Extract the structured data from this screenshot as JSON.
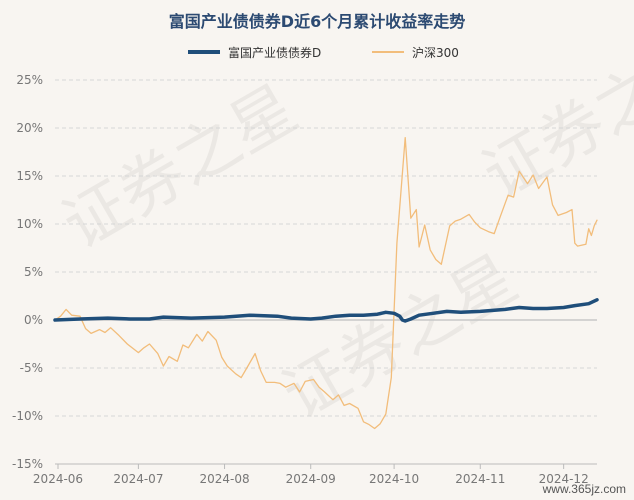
{
  "chart_data": {
    "type": "line",
    "title": "富国产业债债券D近6个月累计收益率走势",
    "xlabel": "",
    "ylabel": "",
    "y_ticks": [
      "25%",
      "20%",
      "15%",
      "10%",
      "5%",
      "0%",
      "-5%",
      "-10%",
      "-15%"
    ],
    "ylim": [
      -15,
      25
    ],
    "x_ticks": [
      "2024-06",
      "2024-07",
      "2024-08",
      "2024-09",
      "2024-10",
      "2024-11",
      "2024-12"
    ],
    "x_range": [
      "2024-06-01",
      "2024-12-13"
    ],
    "grid": "horizontal-dashed",
    "legend": "top-center",
    "series": [
      {
        "name": "富国产业债债券D",
        "color": "#1f4e7a",
        "points": [
          [
            "2024-06-01",
            0.0
          ],
          [
            "2024-06-10",
            0.1
          ],
          [
            "2024-06-20",
            0.2
          ],
          [
            "2024-06-28",
            0.1
          ],
          [
            "2024-07-05",
            0.1
          ],
          [
            "2024-07-10",
            0.3
          ],
          [
            "2024-07-20",
            0.2
          ],
          [
            "2024-08-01",
            0.3
          ],
          [
            "2024-08-10",
            0.5
          ],
          [
            "2024-08-20",
            0.4
          ],
          [
            "2024-08-25",
            0.2
          ],
          [
            "2024-09-01",
            0.1
          ],
          [
            "2024-09-05",
            0.2
          ],
          [
            "2024-09-10",
            0.4
          ],
          [
            "2024-09-15",
            0.5
          ],
          [
            "2024-09-20",
            0.5
          ],
          [
            "2024-09-25",
            0.6
          ],
          [
            "2024-09-28",
            0.8
          ],
          [
            "2024-10-01",
            0.7
          ],
          [
            "2024-10-03",
            0.4
          ],
          [
            "2024-10-04",
            0.0
          ],
          [
            "2024-10-05",
            -0.1
          ],
          [
            "2024-10-07",
            0.1
          ],
          [
            "2024-10-10",
            0.5
          ],
          [
            "2024-10-15",
            0.7
          ],
          [
            "2024-10-20",
            0.9
          ],
          [
            "2024-10-25",
            0.8
          ],
          [
            "2024-11-01",
            0.9
          ],
          [
            "2024-11-10",
            1.1
          ],
          [
            "2024-11-15",
            1.3
          ],
          [
            "2024-11-20",
            1.2
          ],
          [
            "2024-11-25",
            1.2
          ],
          [
            "2024-12-01",
            1.3
          ],
          [
            "2024-12-05",
            1.5
          ],
          [
            "2024-12-10",
            1.7
          ],
          [
            "2024-12-13",
            2.1
          ]
        ]
      },
      {
        "name": "沪深300",
        "color": "#f2bd7b",
        "points": [
          [
            "2024-06-01",
            0.0
          ],
          [
            "2024-06-03",
            0.4
          ],
          [
            "2024-06-05",
            1.1
          ],
          [
            "2024-06-07",
            0.5
          ],
          [
            "2024-06-10",
            0.4
          ],
          [
            "2024-06-12",
            -0.9
          ],
          [
            "2024-06-14",
            -1.4
          ],
          [
            "2024-06-17",
            -1.0
          ],
          [
            "2024-06-19",
            -1.3
          ],
          [
            "2024-06-21",
            -0.8
          ],
          [
            "2024-06-24",
            -1.6
          ],
          [
            "2024-06-27",
            -2.5
          ],
          [
            "2024-07-01",
            -3.4
          ],
          [
            "2024-07-03",
            -2.9
          ],
          [
            "2024-07-05",
            -2.5
          ],
          [
            "2024-07-08",
            -3.5
          ],
          [
            "2024-07-10",
            -4.8
          ],
          [
            "2024-07-12",
            -3.8
          ],
          [
            "2024-07-15",
            -4.3
          ],
          [
            "2024-07-17",
            -2.6
          ],
          [
            "2024-07-19",
            -2.9
          ],
          [
            "2024-07-22",
            -1.5
          ],
          [
            "2024-07-24",
            -2.2
          ],
          [
            "2024-07-26",
            -1.2
          ],
          [
            "2024-07-29",
            -2.1
          ],
          [
            "2024-07-31",
            -3.9
          ],
          [
            "2024-08-02",
            -4.8
          ],
          [
            "2024-08-05",
            -5.6
          ],
          [
            "2024-08-07",
            -6.0
          ],
          [
            "2024-08-09",
            -5.0
          ],
          [
            "2024-08-12",
            -3.5
          ],
          [
            "2024-08-14",
            -5.3
          ],
          [
            "2024-08-16",
            -6.5
          ],
          [
            "2024-08-19",
            -6.5
          ],
          [
            "2024-08-21",
            -6.6
          ],
          [
            "2024-08-23",
            -7.0
          ],
          [
            "2024-08-26",
            -6.6
          ],
          [
            "2024-08-28",
            -7.5
          ],
          [
            "2024-08-30",
            -6.4
          ],
          [
            "2024-09-02",
            -6.2
          ],
          [
            "2024-09-04",
            -7.0
          ],
          [
            "2024-09-06",
            -7.5
          ],
          [
            "2024-09-09",
            -8.3
          ],
          [
            "2024-09-11",
            -7.8
          ],
          [
            "2024-09-13",
            -8.9
          ],
          [
            "2024-09-15",
            -8.7
          ],
          [
            "2024-09-18",
            -9.2
          ],
          [
            "2024-09-20",
            -10.6
          ],
          [
            "2024-09-22",
            -10.9
          ],
          [
            "2024-09-24",
            -11.3
          ],
          [
            "2024-09-26",
            -10.8
          ],
          [
            "2024-09-28",
            -9.8
          ],
          [
            "2024-09-30",
            -6.0
          ],
          [
            "2024-10-02",
            8.0
          ],
          [
            "2024-10-05",
            19.0
          ],
          [
            "2024-10-07",
            10.6
          ],
          [
            "2024-10-09",
            11.5
          ],
          [
            "2024-10-10",
            7.6
          ],
          [
            "2024-10-12",
            9.9
          ],
          [
            "2024-10-14",
            7.3
          ],
          [
            "2024-10-16",
            6.3
          ],
          [
            "2024-10-18",
            5.8
          ],
          [
            "2024-10-21",
            9.8
          ],
          [
            "2024-10-23",
            10.3
          ],
          [
            "2024-10-25",
            10.5
          ],
          [
            "2024-10-28",
            11.0
          ],
          [
            "2024-10-30",
            10.2
          ],
          [
            "2024-11-01",
            9.6
          ],
          [
            "2024-11-04",
            9.2
          ],
          [
            "2024-11-06",
            9.0
          ],
          [
            "2024-11-08",
            10.6
          ],
          [
            "2024-11-11",
            13.0
          ],
          [
            "2024-11-13",
            12.8
          ],
          [
            "2024-11-15",
            15.5
          ],
          [
            "2024-11-18",
            14.2
          ],
          [
            "2024-11-20",
            15.1
          ],
          [
            "2024-11-22",
            13.7
          ],
          [
            "2024-11-25",
            14.9
          ],
          [
            "2024-11-27",
            12.0
          ],
          [
            "2024-11-29",
            10.9
          ],
          [
            "2024-12-02",
            11.2
          ],
          [
            "2024-12-04",
            11.5
          ],
          [
            "2024-12-05",
            8.0
          ],
          [
            "2024-12-06",
            7.7
          ],
          [
            "2024-12-09",
            7.9
          ],
          [
            "2024-12-10",
            9.5
          ],
          [
            "2024-12-11",
            8.8
          ],
          [
            "2024-12-12",
            9.8
          ],
          [
            "2024-12-13",
            10.4
          ]
        ]
      }
    ]
  },
  "watermark": "www.365jz.com"
}
